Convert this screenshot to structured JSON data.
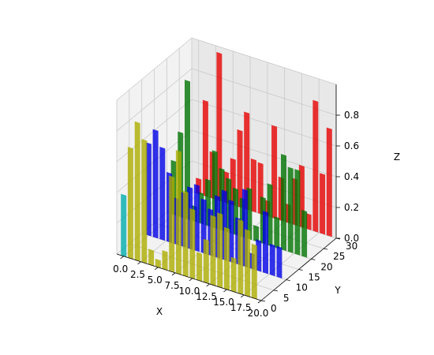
{
  "chart_data": {
    "type": "bar3d",
    "xlabel": "X",
    "ylabel": "Y",
    "zlabel": "Z",
    "xlim": [
      -1,
      20
    ],
    "ylim": [
      0,
      30
    ],
    "zlim": [
      0,
      1
    ],
    "x_ticks": [
      "0.0",
      "2.5",
      "5.0",
      "7.5",
      "10.0",
      "12.5",
      "15.0",
      "17.5",
      "20.0"
    ],
    "y_ticks": [
      "0",
      "5",
      "10",
      "15",
      "20",
      "25",
      "30"
    ],
    "z_ticks": [
      "0.0",
      "0.2",
      "0.4",
      "0.6",
      "0.8"
    ],
    "grid": true,
    "series": [
      {
        "y": 30,
        "color": "#ff0000",
        "values": [
          0.1,
          0.62,
          0.3,
          0.96,
          0.2,
          0.3,
          0.5,
          0.63,
          0.34,
          0.33,
          0.1,
          0.6,
          0.28,
          0.12,
          0.3,
          0.4,
          0.1,
          0.85,
          0.39,
          0.7
        ]
      },
      {
        "y": 20,
        "color": "#008000",
        "values": [
          0.35,
          0.55,
          0.9,
          0.1,
          0.2,
          0.3,
          0.5,
          0.4,
          0.35,
          0.3,
          0.25,
          0.33,
          0.1,
          0.3,
          0.4,
          0.2,
          0.62,
          0.55,
          0.55,
          0.3
        ]
      },
      {
        "y": 10,
        "color": "#0000ff",
        "values": [
          0.6,
          0.7,
          0.6,
          0.45,
          0.3,
          0.35,
          0.4,
          0.43,
          0.35,
          0.3,
          0.4,
          0.45,
          0.4,
          0.3,
          0.5,
          0.1,
          0.2,
          0.4,
          0.2,
          0.2
        ]
      },
      {
        "y": 0,
        "color": "#bfbf00",
        "values": [
          0.4,
          0.72,
          0.9,
          0.8,
          0.1,
          0.05,
          0.12,
          0.62,
          0.8,
          0.55,
          0.45,
          0.18,
          0.28,
          0.45,
          0.48,
          0.4,
          0.22,
          0.48,
          0.43,
          0.35
        ],
        "first_color": "#00bfbf"
      }
    ]
  }
}
